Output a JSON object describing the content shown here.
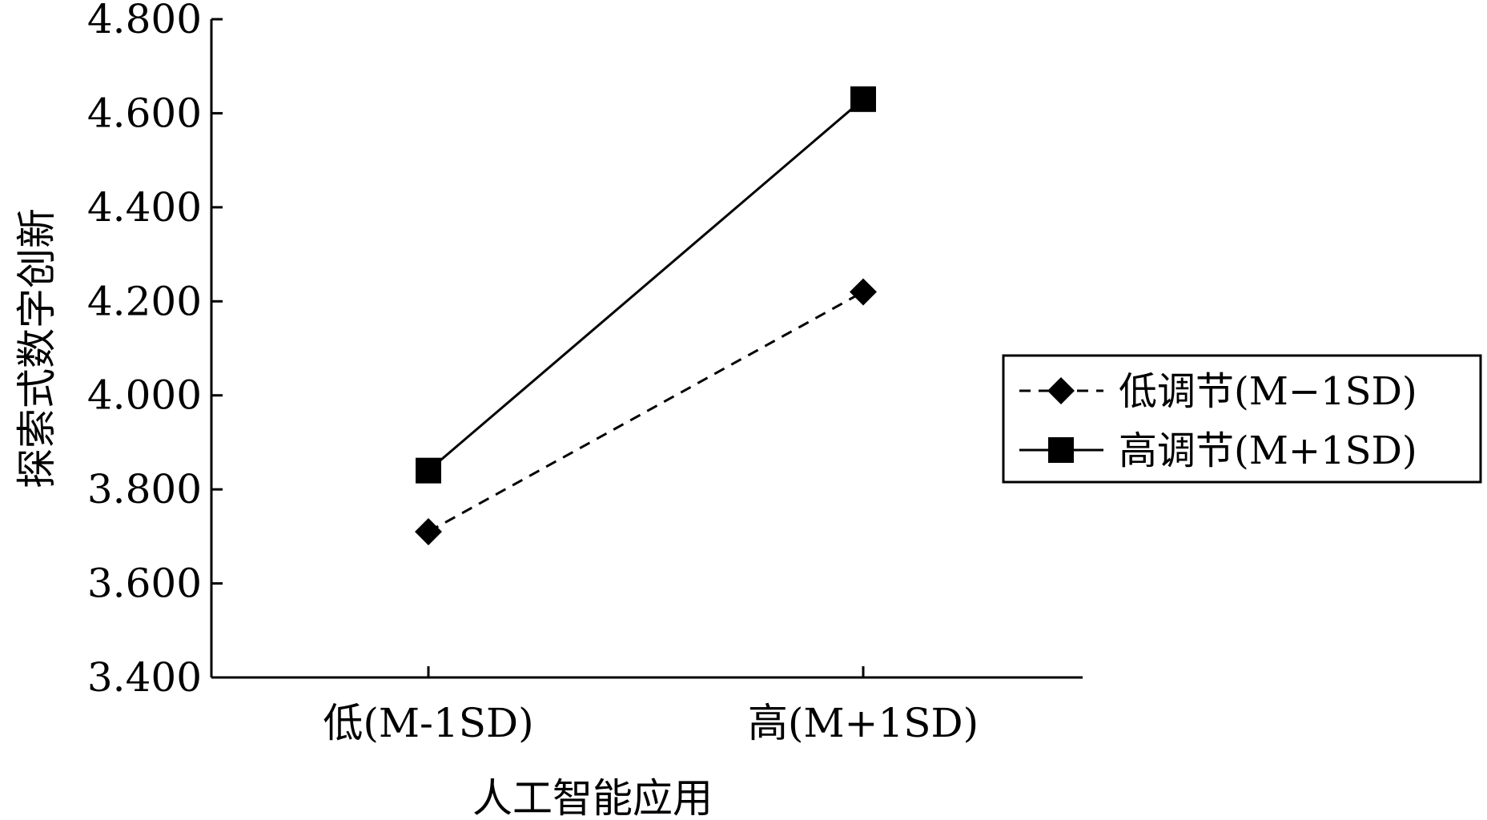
{
  "chart_data": {
    "type": "line",
    "title": "",
    "xlabel": "人工智能应用",
    "ylabel": "探索式数字创新",
    "categories": [
      "低(M-1SD)",
      "高(M+1SD)"
    ],
    "ylim": [
      3.4,
      4.8
    ],
    "yticks": [
      "3.400",
      "3.600",
      "3.800",
      "4.000",
      "4.200",
      "4.400",
      "4.600",
      "4.800"
    ],
    "grid": false,
    "legend": "right",
    "series": [
      {
        "name": "低调节(M−1SD)",
        "values": [
          3.71,
          4.22
        ],
        "line_style": "dashed",
        "marker": "diamond",
        "color": "#000000"
      },
      {
        "name": "高调节(M+1SD)",
        "values": [
          3.84,
          4.63
        ],
        "line_style": "solid",
        "marker": "square",
        "color": "#000000"
      }
    ]
  }
}
